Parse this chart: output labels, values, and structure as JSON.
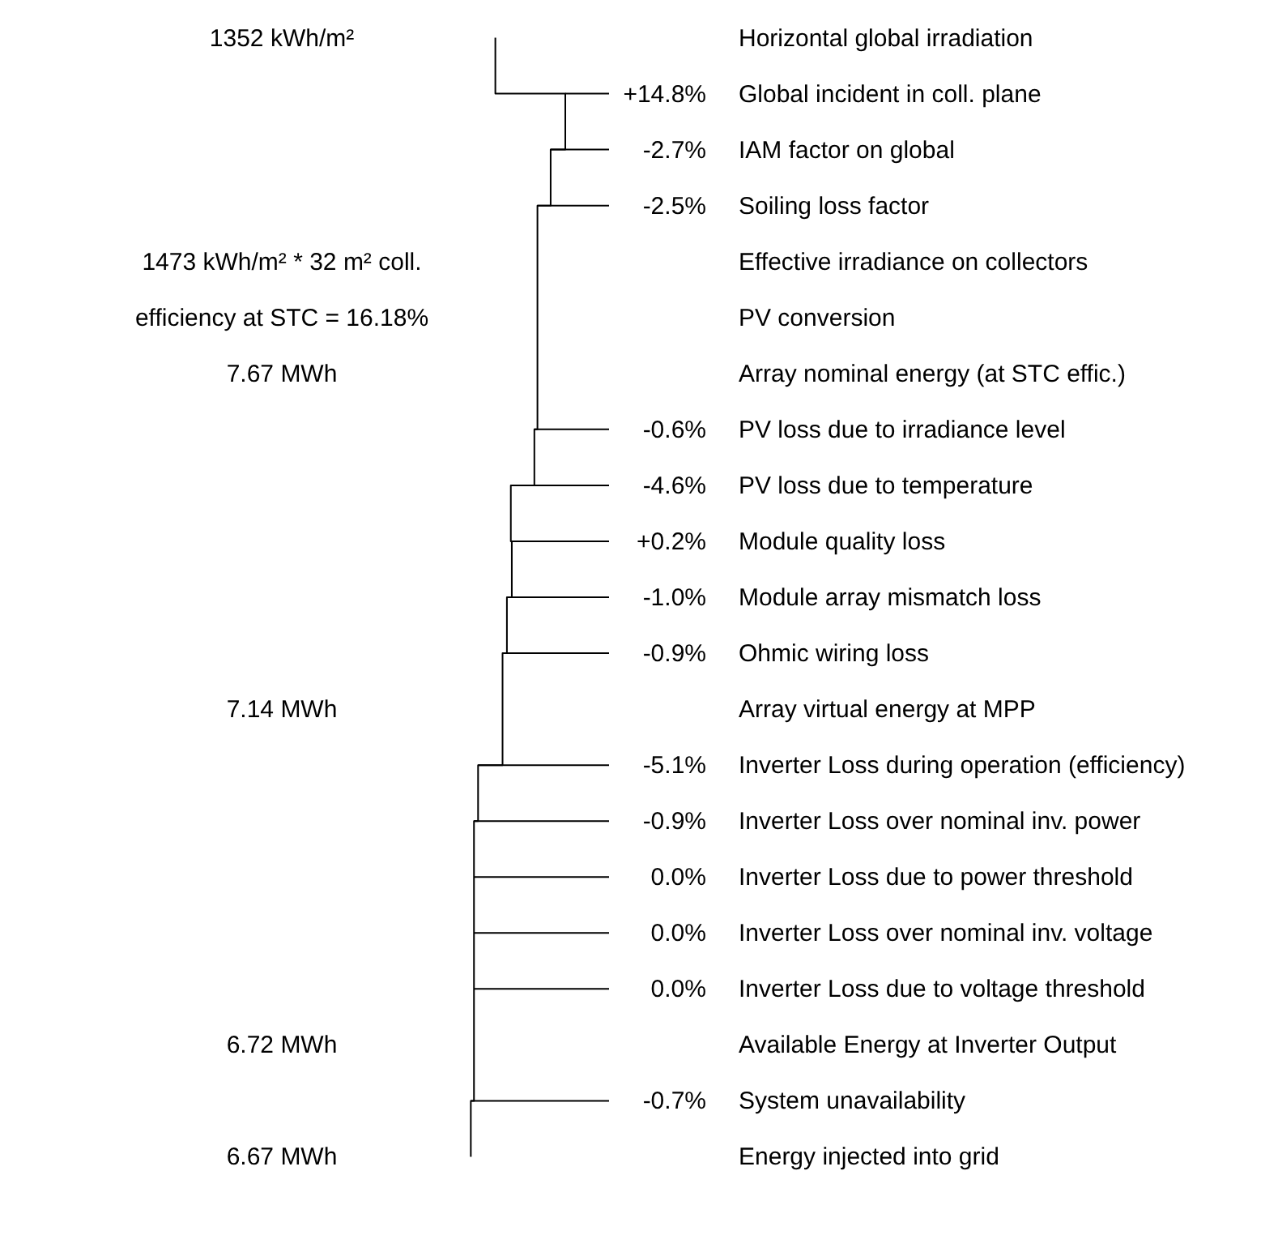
{
  "chart_data": {
    "type": "other",
    "categories": [
      "Horizontal global irradiation",
      "Global incident in coll. plane",
      "IAM factor on global",
      "Soiling loss factor",
      "Effective irradiance on collectors",
      "PV conversion",
      "Array nominal energy (at STC effic.)",
      "PV loss due to irradiance level",
      "PV loss due to temperature",
      "Module quality loss",
      "Module array mismatch loss",
      "Ohmic wiring loss",
      "Array virtual energy at MPP",
      "Inverter Loss during operation (efficiency)",
      "Inverter Loss over nominal inv. power",
      "Inverter Loss due to power threshold",
      "Inverter Loss over nominal inv. voltage",
      "Inverter Loss due to voltage threshold",
      "Available Energy at Inverter Output",
      "System unavailability",
      "Energy injected into grid"
    ],
    "values": [
      null,
      14.8,
      -2.7,
      -2.5,
      null,
      null,
      null,
      -0.6,
      -4.6,
      0.2,
      -1.0,
      -0.9,
      null,
      -5.1,
      -0.9,
      0.0,
      0.0,
      0.0,
      null,
      -0.7,
      null
    ],
    "value_labels": [
      null,
      "+14.8%",
      "-2.7%",
      "-2.5%",
      null,
      null,
      null,
      "-0.6%",
      "-4.6%",
      "+0.2%",
      "-1.0%",
      "-0.9%",
      null,
      "-5.1%",
      "-0.9%",
      "0.0%",
      "0.0%",
      "0.0%",
      null,
      "-0.7%",
      null
    ],
    "annotations": [
      {
        "text": "1352 kWh/m²",
        "y": "Horizontal global irradiation"
      },
      {
        "text": "1473 kWh/m² * 32 m² coll.",
        "y": "Effective irradiance on collectors"
      },
      {
        "text": "efficiency at STC = 16.18%",
        "y": "PV conversion"
      },
      {
        "text": "7.67 MWh",
        "y": "Array nominal energy (at STC effic.)"
      },
      {
        "text": "7.14 MWh",
        "y": "Array virtual energy at MPP"
      },
      {
        "text": "6.72 MWh",
        "y": "Available Energy at Inverter Output"
      },
      {
        "text": "6.67 MWh",
        "y": "Energy injected into grid"
      }
    ]
  }
}
